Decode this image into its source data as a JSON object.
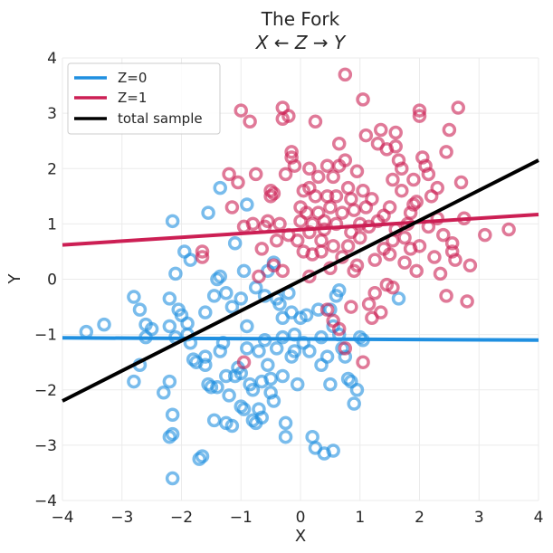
{
  "chart_data": {
    "type": "scatter",
    "title": "The Fork",
    "subtitle": "X ← Z → Y",
    "xlabel": "X",
    "ylabel": "Y",
    "xlim": [
      -4,
      4
    ],
    "ylim": [
      -4,
      4
    ],
    "xticks": [
      -4,
      -3,
      -2,
      -1,
      0,
      1,
      2,
      3,
      4
    ],
    "yticks": [
      -4,
      -3,
      -2,
      -1,
      0,
      1,
      2,
      3,
      4
    ],
    "tick_labels_x": [
      "−4",
      "−3",
      "−2",
      "−1",
      "0",
      "1",
      "2",
      "3",
      "4"
    ],
    "tick_labels_y": [
      "−4",
      "−3",
      "−2",
      "−1",
      "0",
      "1",
      "2",
      "3",
      "4"
    ],
    "grid": true,
    "legend_position": "top-left",
    "series": [
      {
        "name": "Z=0",
        "color": "#1f8fe0",
        "points": [
          [
            -3.6,
            -0.95
          ],
          [
            -3.3,
            -0.82
          ],
          [
            -2.8,
            -0.32
          ],
          [
            -2.8,
            -1.85
          ],
          [
            -2.7,
            -0.55
          ],
          [
            -2.7,
            -1.55
          ],
          [
            -2.6,
            -0.82
          ],
          [
            -2.5,
            -0.9
          ],
          [
            -2.3,
            -2.05
          ],
          [
            -2.2,
            -0.35
          ],
          [
            -2.2,
            -0.85
          ],
          [
            -2.2,
            -1.85
          ],
          [
            -2.15,
            -2.45
          ],
          [
            -2.15,
            -2.8
          ],
          [
            -2.2,
            -2.85
          ],
          [
            -2.15,
            -3.6
          ],
          [
            -2.1,
            0.1
          ],
          [
            -2.1,
            -1.05
          ],
          [
            -2.05,
            -0.55
          ],
          [
            -2.0,
            -0.65
          ],
          [
            -1.95,
            0.5
          ],
          [
            -1.9,
            -0.8
          ],
          [
            -1.85,
            -1.15
          ],
          [
            -1.8,
            -1.45
          ],
          [
            -1.75,
            -1.5
          ],
          [
            -1.7,
            -3.25
          ],
          [
            -1.65,
            -3.2
          ],
          [
            -1.6,
            -0.6
          ],
          [
            -1.6,
            -1.55
          ],
          [
            -1.55,
            -1.9
          ],
          [
            -1.5,
            -1.95
          ],
          [
            -1.45,
            -0.3
          ],
          [
            -1.45,
            -2.55
          ],
          [
            -1.4,
            0.0
          ],
          [
            -1.35,
            0.05
          ],
          [
            -1.35,
            -1.3
          ],
          [
            -1.3,
            -1.15
          ],
          [
            -1.25,
            -1.75
          ],
          [
            -1.25,
            -2.6
          ],
          [
            -1.2,
            -2.1
          ],
          [
            -1.15,
            -2.65
          ],
          [
            -1.1,
            -1.75
          ],
          [
            -1.05,
            -1.6
          ],
          [
            -1.0,
            -1.7
          ],
          [
            -1.0,
            -2.3
          ],
          [
            -0.95,
            -2.35
          ],
          [
            -0.9,
            -0.85
          ],
          [
            -0.9,
            -1.25
          ],
          [
            -0.85,
            -1.9
          ],
          [
            -0.8,
            -2.0
          ],
          [
            -0.8,
            -2.55
          ],
          [
            -0.75,
            -2.6
          ],
          [
            -0.7,
            -1.3
          ],
          [
            -0.7,
            -2.35
          ],
          [
            -0.65,
            -2.5
          ],
          [
            -0.6,
            -0.3
          ],
          [
            -0.6,
            -1.1
          ],
          [
            -0.55,
            -1.55
          ],
          [
            -0.5,
            -1.8
          ],
          [
            -0.5,
            -2.05
          ],
          [
            -0.45,
            -2.2
          ],
          [
            -0.4,
            -0.35
          ],
          [
            -0.35,
            -0.45
          ],
          [
            -0.3,
            -0.7
          ],
          [
            -0.3,
            -1.05
          ],
          [
            -0.3,
            -1.75
          ],
          [
            -0.25,
            -2.6
          ],
          [
            -0.25,
            -2.85
          ],
          [
            -0.2,
            -0.25
          ],
          [
            -0.15,
            -0.6
          ],
          [
            -0.1,
            -1.0
          ],
          [
            -0.1,
            -1.3
          ],
          [
            -0.05,
            -1.9
          ],
          [
            0.0,
            -0.7
          ],
          [
            0.05,
            -1.15
          ],
          [
            0.1,
            -0.65
          ],
          [
            0.15,
            -1.3
          ],
          [
            0.2,
            -2.85
          ],
          [
            0.25,
            -3.05
          ],
          [
            0.3,
            -0.55
          ],
          [
            0.35,
            -1.05
          ],
          [
            0.4,
            -3.15
          ],
          [
            0.45,
            -1.4
          ],
          [
            0.5,
            -0.55
          ],
          [
            0.5,
            -1.9
          ],
          [
            0.55,
            -3.1
          ],
          [
            0.6,
            -0.3
          ],
          [
            0.65,
            -1.0
          ],
          [
            0.7,
            -1.25
          ],
          [
            0.75,
            -1.4
          ],
          [
            0.8,
            -1.8
          ],
          [
            0.85,
            -1.85
          ],
          [
            0.9,
            -2.25
          ],
          [
            0.95,
            -2.0
          ],
          [
            1.0,
            -1.05
          ],
          [
            1.05,
            -1.1
          ],
          [
            -2.15,
            1.05
          ],
          [
            -1.85,
            0.35
          ],
          [
            -1.55,
            1.2
          ],
          [
            -1.35,
            1.65
          ],
          [
            -1.1,
            0.65
          ],
          [
            -0.9,
            1.35
          ],
          [
            -0.95,
            0.15
          ],
          [
            -1.0,
            -0.35
          ],
          [
            -1.15,
            -0.5
          ],
          [
            -1.25,
            -0.25
          ],
          [
            -0.75,
            -0.15
          ],
          [
            -0.55,
            0.15
          ],
          [
            -0.45,
            0.3
          ],
          [
            1.65,
            -0.35
          ],
          [
            0.55,
            -0.85
          ],
          [
            0.65,
            -0.2
          ],
          [
            -0.4,
            -1.25
          ],
          [
            -1.6,
            -1.4
          ],
          [
            -1.9,
            -1.0
          ],
          [
            -2.6,
            -1.05
          ],
          [
            -0.65,
            -1.85
          ],
          [
            -1.4,
            -1.95
          ],
          [
            -0.15,
            -1.4
          ],
          [
            0.35,
            -1.55
          ]
        ],
        "line": {
          "x": [
            -4,
            4
          ],
          "y": [
            -1.06,
            -1.1
          ]
        }
      },
      {
        "name": "Z=1",
        "color": "#cc1f54",
        "points": [
          [
            -1.65,
            0.4
          ],
          [
            -1.65,
            0.5
          ],
          [
            -1.2,
            1.9
          ],
          [
            -1.15,
            1.3
          ],
          [
            -1.0,
            3.05
          ],
          [
            -0.95,
            0.95
          ],
          [
            -0.85,
            2.85
          ],
          [
            -0.8,
            1.0
          ],
          [
            -0.65,
            0.55
          ],
          [
            -0.6,
            0.95
          ],
          [
            -0.55,
            1.05
          ],
          [
            -0.5,
            1.5
          ],
          [
            -0.5,
            1.6
          ],
          [
            -0.45,
            1.55
          ],
          [
            -0.4,
            0.7
          ],
          [
            -0.35,
            1.0
          ],
          [
            -0.3,
            3.1
          ],
          [
            -0.3,
            2.9
          ],
          [
            -0.25,
            1.9
          ],
          [
            -0.2,
            2.95
          ],
          [
            -0.15,
            2.2
          ],
          [
            -0.15,
            2.3
          ],
          [
            -0.1,
            2.05
          ],
          [
            -0.05,
            0.7
          ],
          [
            0.0,
            1.05
          ],
          [
            0.0,
            1.3
          ],
          [
            0.05,
            1.6
          ],
          [
            0.1,
            1.2
          ],
          [
            0.15,
            0.85
          ],
          [
            0.15,
            1.65
          ],
          [
            0.2,
            1.0
          ],
          [
            0.2,
            0.45
          ],
          [
            0.25,
            2.85
          ],
          [
            0.3,
            1.2
          ],
          [
            0.35,
            0.7
          ],
          [
            0.35,
            0.5
          ],
          [
            0.4,
            1.05
          ],
          [
            0.45,
            1.5
          ],
          [
            0.45,
            2.05
          ],
          [
            0.5,
            0.2
          ],
          [
            0.5,
            1.3
          ],
          [
            0.55,
            1.85
          ],
          [
            0.55,
            0.6
          ],
          [
            0.6,
            1.0
          ],
          [
            0.65,
            2.05
          ],
          [
            0.7,
            0.4
          ],
          [
            0.7,
            1.2
          ],
          [
            0.75,
            2.15
          ],
          [
            0.75,
            3.7
          ],
          [
            0.8,
            1.65
          ],
          [
            0.85,
            0.85
          ],
          [
            0.85,
            1.45
          ],
          [
            0.9,
            1.25
          ],
          [
            0.95,
            1.95
          ],
          [
            0.95,
            0.25
          ],
          [
            1.0,
            0.75
          ],
          [
            1.0,
            1.0
          ],
          [
            1.05,
            1.6
          ],
          [
            1.05,
            3.25
          ],
          [
            1.1,
            2.6
          ],
          [
            1.15,
            0.95
          ],
          [
            1.2,
            1.45
          ],
          [
            1.25,
            0.35
          ],
          [
            1.3,
            2.45
          ],
          [
            1.35,
            2.7
          ],
          [
            1.4,
            1.15
          ],
          [
            1.4,
            0.55
          ],
          [
            1.45,
            2.35
          ],
          [
            1.5,
            1.3
          ],
          [
            1.55,
            1.8
          ],
          [
            1.55,
            0.7
          ],
          [
            1.6,
            2.4
          ],
          [
            1.6,
            2.65
          ],
          [
            1.65,
            2.15
          ],
          [
            1.7,
            1.6
          ],
          [
            1.75,
            0.3
          ],
          [
            1.8,
            1.0
          ],
          [
            1.85,
            0.55
          ],
          [
            1.9,
            1.35
          ],
          [
            1.95,
            0.15
          ],
          [
            2.0,
            3.05
          ],
          [
            2.0,
            2.95
          ],
          [
            2.05,
            2.2
          ],
          [
            2.1,
            2.05
          ],
          [
            2.15,
            1.9
          ],
          [
            2.2,
            1.5
          ],
          [
            2.25,
            0.4
          ],
          [
            2.3,
            1.65
          ],
          [
            2.35,
            0.1
          ],
          [
            2.4,
            0.8
          ],
          [
            2.45,
            2.3
          ],
          [
            2.45,
            -0.3
          ],
          [
            2.5,
            2.7
          ],
          [
            2.55,
            0.65
          ],
          [
            2.6,
            0.35
          ],
          [
            2.65,
            3.1
          ],
          [
            2.7,
            1.75
          ],
          [
            2.75,
            1.1
          ],
          [
            2.8,
            -0.4
          ],
          [
            2.85,
            0.25
          ],
          [
            3.1,
            0.8
          ],
          [
            3.5,
            0.9
          ],
          [
            -0.7,
            0.05
          ],
          [
            -0.45,
            0.25
          ],
          [
            -0.3,
            0.15
          ],
          [
            0.15,
            0.05
          ],
          [
            0.45,
            -0.55
          ],
          [
            0.55,
            -0.75
          ],
          [
            0.65,
            -0.9
          ],
          [
            0.75,
            -1.25
          ],
          [
            0.85,
            -0.5
          ],
          [
            1.05,
            -1.5
          ],
          [
            1.2,
            -0.7
          ],
          [
            1.25,
            -0.25
          ],
          [
            1.35,
            -0.6
          ],
          [
            1.45,
            -0.1
          ],
          [
            1.55,
            -0.15
          ],
          [
            1.75,
            0.75
          ],
          [
            1.9,
            1.8
          ],
          [
            1.15,
            -0.45
          ],
          [
            0.65,
            2.45
          ],
          [
            0.3,
            1.85
          ],
          [
            1.85,
            1.2
          ],
          [
            2.15,
            0.95
          ],
          [
            2.55,
            0.5
          ],
          [
            0.9,
            0.15
          ],
          [
            1.3,
            1.05
          ],
          [
            0.05,
            0.5
          ],
          [
            -0.2,
            0.8
          ],
          [
            0.25,
            1.5
          ],
          [
            1.6,
            0.9
          ],
          [
            2.0,
            0.6
          ],
          [
            0.4,
            0.9
          ],
          [
            1.1,
            1.3
          ],
          [
            1.5,
            0.45
          ],
          [
            0.8,
            0.6
          ],
          [
            -0.95,
            -1.5
          ],
          [
            -1.05,
            1.75
          ],
          [
            -0.75,
            1.9
          ],
          [
            0.6,
            1.5
          ],
          [
            1.95,
            1.4
          ],
          [
            2.3,
            1.1
          ],
          [
            0.15,
            2.0
          ],
          [
            1.7,
            2.0
          ]
        ],
        "line": {
          "x": [
            -4,
            4
          ],
          "y": [
            0.62,
            1.17
          ]
        }
      },
      {
        "name": "total sample",
        "color": "#000000",
        "points": [],
        "line": {
          "x": [
            -4,
            4
          ],
          "y": [
            -2.2,
            2.15
          ]
        }
      }
    ]
  }
}
